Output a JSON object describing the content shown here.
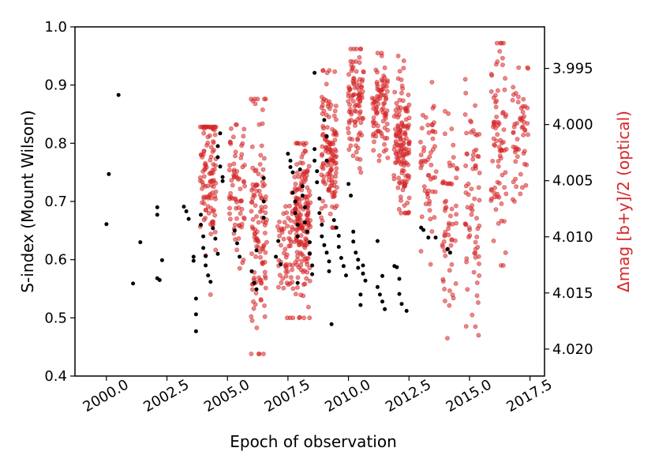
{
  "chart_data": {
    "type": "scatter",
    "xlabel": "Epoch of observation",
    "ylabel": "S-index (Mount Wilson)",
    "y2label": "Δmag [b+y]/2 (optical)",
    "xlim": [
      1998.7,
      2018.1
    ],
    "ylim": [
      0.4,
      1.0
    ],
    "y2lim_inverted": [
      4.0224,
      3.9913
    ],
    "y2_inverted": true,
    "xticks": [
      "2000.0",
      "2002.5",
      "2005.0",
      "2007.5",
      "2010.0",
      "2012.5",
      "2015.0",
      "2017.5"
    ],
    "xtick_values": [
      2000.0,
      2002.5,
      2005.0,
      2007.5,
      2010.0,
      2012.5,
      2015.0,
      2017.5
    ],
    "yticks": [
      "0.4",
      "0.5",
      "0.6",
      "0.7",
      "0.8",
      "0.9",
      "1.0"
    ],
    "ytick_values": [
      0.4,
      0.5,
      0.6,
      0.7,
      0.8,
      0.9,
      1.0
    ],
    "y2ticks": [
      "3.995",
      "4.000",
      "4.005",
      "4.010",
      "4.015",
      "4.020"
    ],
    "y2tick_values": [
      3.995,
      4.0,
      4.005,
      4.01,
      4.015,
      4.02
    ],
    "grid": false,
    "colors": {
      "s_index": "#000000",
      "photometry": "#d62728",
      "y2label": "#d62728"
    },
    "series": [
      {
        "axis": "left",
        "points": [
          [
            2000.0,
            0.661
          ],
          [
            2000.1,
            0.747
          ],
          [
            2000.5,
            0.883
          ],
          [
            2001.1,
            0.559
          ],
          [
            2001.4,
            0.63
          ],
          [
            2002.1,
            0.69
          ],
          [
            2002.1,
            0.677
          ],
          [
            2002.1,
            0.568
          ],
          [
            2002.2,
            0.565
          ],
          [
            2002.3,
            0.599
          ],
          [
            2003.2,
            0.691
          ],
          [
            2003.3,
            0.683
          ],
          [
            2003.4,
            0.67
          ],
          [
            2003.6,
            0.605
          ],
          [
            2003.6,
            0.598
          ],
          [
            2003.7,
            0.533
          ],
          [
            2003.7,
            0.506
          ],
          [
            2003.7,
            0.477
          ],
          [
            2003.9,
            0.677
          ],
          [
            2003.9,
            0.66
          ],
          [
            2004.0,
            0.64
          ],
          [
            2004.0,
            0.62
          ],
          [
            2004.1,
            0.606
          ],
          [
            2004.1,
            0.59
          ],
          [
            2004.2,
            0.573
          ],
          [
            2004.3,
            0.562
          ],
          [
            2004.4,
            0.654
          ],
          [
            2004.5,
            0.636
          ],
          [
            2004.6,
            0.61
          ],
          [
            2004.6,
            0.795
          ],
          [
            2004.6,
            0.776
          ],
          [
            2004.7,
            0.817
          ],
          [
            2004.7,
            0.76
          ],
          [
            2004.8,
            0.742
          ],
          [
            2004.8,
            0.735
          ],
          [
            2005.3,
            0.65
          ],
          [
            2005.4,
            0.628
          ],
          [
            2005.5,
            0.605
          ],
          [
            2006.0,
            0.58
          ],
          [
            2006.1,
            0.56
          ],
          [
            2006.2,
            0.549
          ],
          [
            2006.2,
            0.616
          ],
          [
            2006.5,
            0.74
          ],
          [
            2006.5,
            0.7
          ],
          [
            2006.5,
            0.672
          ],
          [
            2007.0,
            0.605
          ],
          [
            2007.1,
            0.632
          ],
          [
            2007.2,
            0.592
          ],
          [
            2007.5,
            0.782
          ],
          [
            2007.6,
            0.759
          ],
          [
            2007.6,
            0.77
          ],
          [
            2007.7,
            0.75
          ],
          [
            2007.7,
            0.715
          ],
          [
            2007.8,
            0.7
          ],
          [
            2007.8,
            0.68
          ],
          [
            2007.9,
            0.66
          ],
          [
            2007.9,
            0.64
          ],
          [
            2007.9,
            0.56
          ],
          [
            2008.0,
            0.755
          ],
          [
            2008.1,
            0.726
          ],
          [
            2008.1,
            0.71
          ],
          [
            2008.2,
            0.69
          ],
          [
            2008.2,
            0.664
          ],
          [
            2008.3,
            0.648
          ],
          [
            2008.4,
            0.63
          ],
          [
            2008.4,
            0.61
          ],
          [
            2008.5,
            0.59
          ],
          [
            2008.5,
            0.575
          ],
          [
            2008.6,
            0.921
          ],
          [
            2008.6,
            0.79
          ],
          [
            2008.6,
            0.77
          ],
          [
            2008.7,
            0.752
          ],
          [
            2008.7,
            0.733
          ],
          [
            2008.8,
            0.705
          ],
          [
            2008.8,
            0.68
          ],
          [
            2008.9,
            0.66
          ],
          [
            2008.9,
            0.64
          ],
          [
            2009.0,
            0.625
          ],
          [
            2009.0,
            0.84
          ],
          [
            2009.1,
            0.812
          ],
          [
            2009.1,
            0.77
          ],
          [
            2009.1,
            0.612
          ],
          [
            2009.2,
            0.597
          ],
          [
            2009.2,
            0.58
          ],
          [
            2009.3,
            0.489
          ],
          [
            2009.4,
            0.668
          ],
          [
            2009.5,
            0.655
          ],
          [
            2009.6,
            0.641
          ],
          [
            2009.6,
            0.622
          ],
          [
            2009.7,
            0.603
          ],
          [
            2009.8,
            0.589
          ],
          [
            2009.9,
            0.573
          ],
          [
            2010.0,
            0.73
          ],
          [
            2010.1,
            0.71
          ],
          [
            2010.2,
            0.648
          ],
          [
            2010.2,
            0.631
          ],
          [
            2010.3,
            0.612
          ],
          [
            2010.4,
            0.6
          ],
          [
            2010.4,
            0.586
          ],
          [
            2010.5,
            0.54
          ],
          [
            2010.5,
            0.522
          ],
          [
            2010.6,
            0.59
          ],
          [
            2010.6,
            0.576
          ],
          [
            2010.7,
            0.564
          ],
          [
            2011.2,
            0.632
          ],
          [
            2011.2,
            0.553
          ],
          [
            2011.3,
            0.54
          ],
          [
            2011.4,
            0.528
          ],
          [
            2011.4,
            0.572
          ],
          [
            2011.5,
            0.515
          ],
          [
            2011.9,
            0.589
          ],
          [
            2012.0,
            0.587
          ],
          [
            2012.1,
            0.567
          ],
          [
            2012.1,
            0.541
          ],
          [
            2012.2,
            0.524
          ],
          [
            2012.4,
            0.512
          ],
          [
            2013.0,
            0.655
          ],
          [
            2013.1,
            0.651
          ],
          [
            2013.3,
            0.638
          ],
          [
            2013.6,
            0.638
          ],
          [
            2014.1,
            0.618
          ],
          [
            2014.2,
            0.612
          ]
        ]
      },
      {
        "axis": "right",
        "clusters": [
          {
            "x": 2004.2,
            "y2_range": [
              4.0025,
              4.0163
            ],
            "ymin_label": 0.54,
            "ymax_label": 0.828,
            "n": 110,
            "peak": 0.76
          },
          {
            "x": 2005.4,
            "y2_range": [
              4.0011,
              4.014
            ],
            "ymin_label": 0.585,
            "ymax_label": 0.832,
            "n": 70,
            "peak": 0.72
          },
          {
            "x": 2006.3,
            "y2_range": [
              3.9997,
              4.0219
            ],
            "ymin_label": 0.438,
            "ymax_label": 0.876,
            "n": 120,
            "peak": 0.65
          },
          {
            "x": 2007.4,
            "y2_range": [
              4.008,
              4.0185
            ],
            "ymin_label": 0.5,
            "ymax_label": 0.715,
            "n": 60,
            "peak": 0.61
          },
          {
            "x": 2008.1,
            "y2_range": [
              4.0009,
              4.0182
            ],
            "ymin_label": 0.5,
            "ymax_label": 0.8,
            "n": 170,
            "peak": 0.66
          },
          {
            "x": 2009.2,
            "y2_range": [
              3.9961,
              4.0091
            ],
            "ymin_label": 0.655,
            "ymax_label": 0.925,
            "n": 130,
            "peak": 0.78
          },
          {
            "x": 2010.3,
            "y2_range": [
              3.9923,
              4.0031
            ],
            "ymin_label": 0.75,
            "ymax_label": 0.962,
            "n": 100,
            "peak": 0.87
          },
          {
            "x": 2011.3,
            "y2_range": [
              3.9926,
              4.0044
            ],
            "ymin_label": 0.77,
            "ymax_label": 0.955,
            "n": 90,
            "peak": 0.86
          },
          {
            "x": 2012.2,
            "y2_range": [
              3.9927,
              4.0093
            ],
            "ymin_label": 0.68,
            "ymax_label": 0.95,
            "n": 140,
            "peak": 0.8
          },
          {
            "x": 2013.3,
            "y2_range": [
              3.9972,
              4.0152
            ],
            "ymin_label": 0.592,
            "ymax_label": 0.905,
            "n": 55,
            "peak": 0.74
          },
          {
            "x": 2014.2,
            "y2_range": [
              4.001,
              4.0204
            ],
            "ymin_label": 0.465,
            "ymax_label": 0.855,
            "n": 60,
            "peak": 0.66
          },
          {
            "x": 2015.1,
            "y2_range": [
              3.9982,
              4.0206
            ],
            "ymin_label": 0.47,
            "ymax_label": 0.91,
            "n": 70,
            "peak": 0.68
          },
          {
            "x": 2016.2,
            "y2_range": [
              3.9913,
              4.0133
            ],
            "ymin_label": 0.59,
            "ymax_label": 0.972,
            "n": 80,
            "peak": 0.8
          },
          {
            "x": 2017.1,
            "y2_range": [
              3.9951,
              4.0059
            ],
            "ymin_label": 0.7,
            "ymax_label": 0.93,
            "n": 55,
            "peak": 0.82
          }
        ]
      }
    ]
  }
}
